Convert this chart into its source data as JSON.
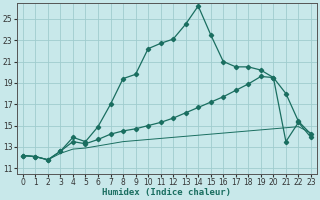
{
  "xlabel": "Humidex (Indice chaleur)",
  "bg_color": "#c8e8ea",
  "grid_color": "#a0ccce",
  "line_color": "#1a6e60",
  "xlim": [
    -0.5,
    23.5
  ],
  "ylim": [
    10.5,
    26.5
  ],
  "xticks": [
    0,
    1,
    2,
    3,
    4,
    5,
    6,
    7,
    8,
    9,
    10,
    11,
    12,
    13,
    14,
    15,
    16,
    17,
    18,
    19,
    20,
    21,
    22,
    23
  ],
  "yticks": [
    11,
    13,
    15,
    17,
    19,
    21,
    23,
    25
  ],
  "line1_x": [
    0,
    1,
    2,
    3,
    4,
    5,
    6,
    7,
    8,
    9,
    10,
    11,
    12,
    13,
    14,
    15,
    16,
    17,
    18,
    19,
    20,
    21,
    22,
    23
  ],
  "line1_y": [
    12.2,
    12.1,
    11.8,
    12.6,
    13.9,
    13.5,
    14.9,
    17.0,
    19.4,
    19.8,
    22.2,
    22.7,
    23.1,
    24.5,
    26.2,
    23.5,
    21.0,
    20.5,
    20.5,
    20.2,
    19.5,
    18.0,
    15.4,
    14.2
  ],
  "line2_x": [
    0,
    1,
    2,
    3,
    4,
    5,
    6,
    7,
    8,
    9,
    10,
    11,
    12,
    13,
    14,
    15,
    16,
    17,
    18,
    19,
    20,
    21,
    22,
    23
  ],
  "line2_y": [
    12.2,
    12.1,
    11.8,
    12.6,
    13.5,
    13.3,
    13.7,
    14.2,
    14.5,
    14.7,
    15.0,
    15.3,
    15.7,
    16.2,
    16.7,
    17.2,
    17.7,
    18.3,
    18.9,
    19.6,
    19.5,
    13.5,
    15.3,
    13.9
  ],
  "line3_x": [
    0,
    1,
    2,
    3,
    4,
    5,
    6,
    7,
    8,
    9,
    10,
    11,
    12,
    13,
    14,
    15,
    16,
    17,
    18,
    19,
    20,
    21,
    22,
    23
  ],
  "line3_y": [
    12.2,
    12.1,
    11.8,
    12.4,
    12.8,
    12.9,
    13.1,
    13.3,
    13.5,
    13.6,
    13.7,
    13.8,
    13.9,
    14.0,
    14.1,
    14.2,
    14.3,
    14.4,
    14.5,
    14.6,
    14.7,
    14.8,
    14.9,
    14.3
  ]
}
